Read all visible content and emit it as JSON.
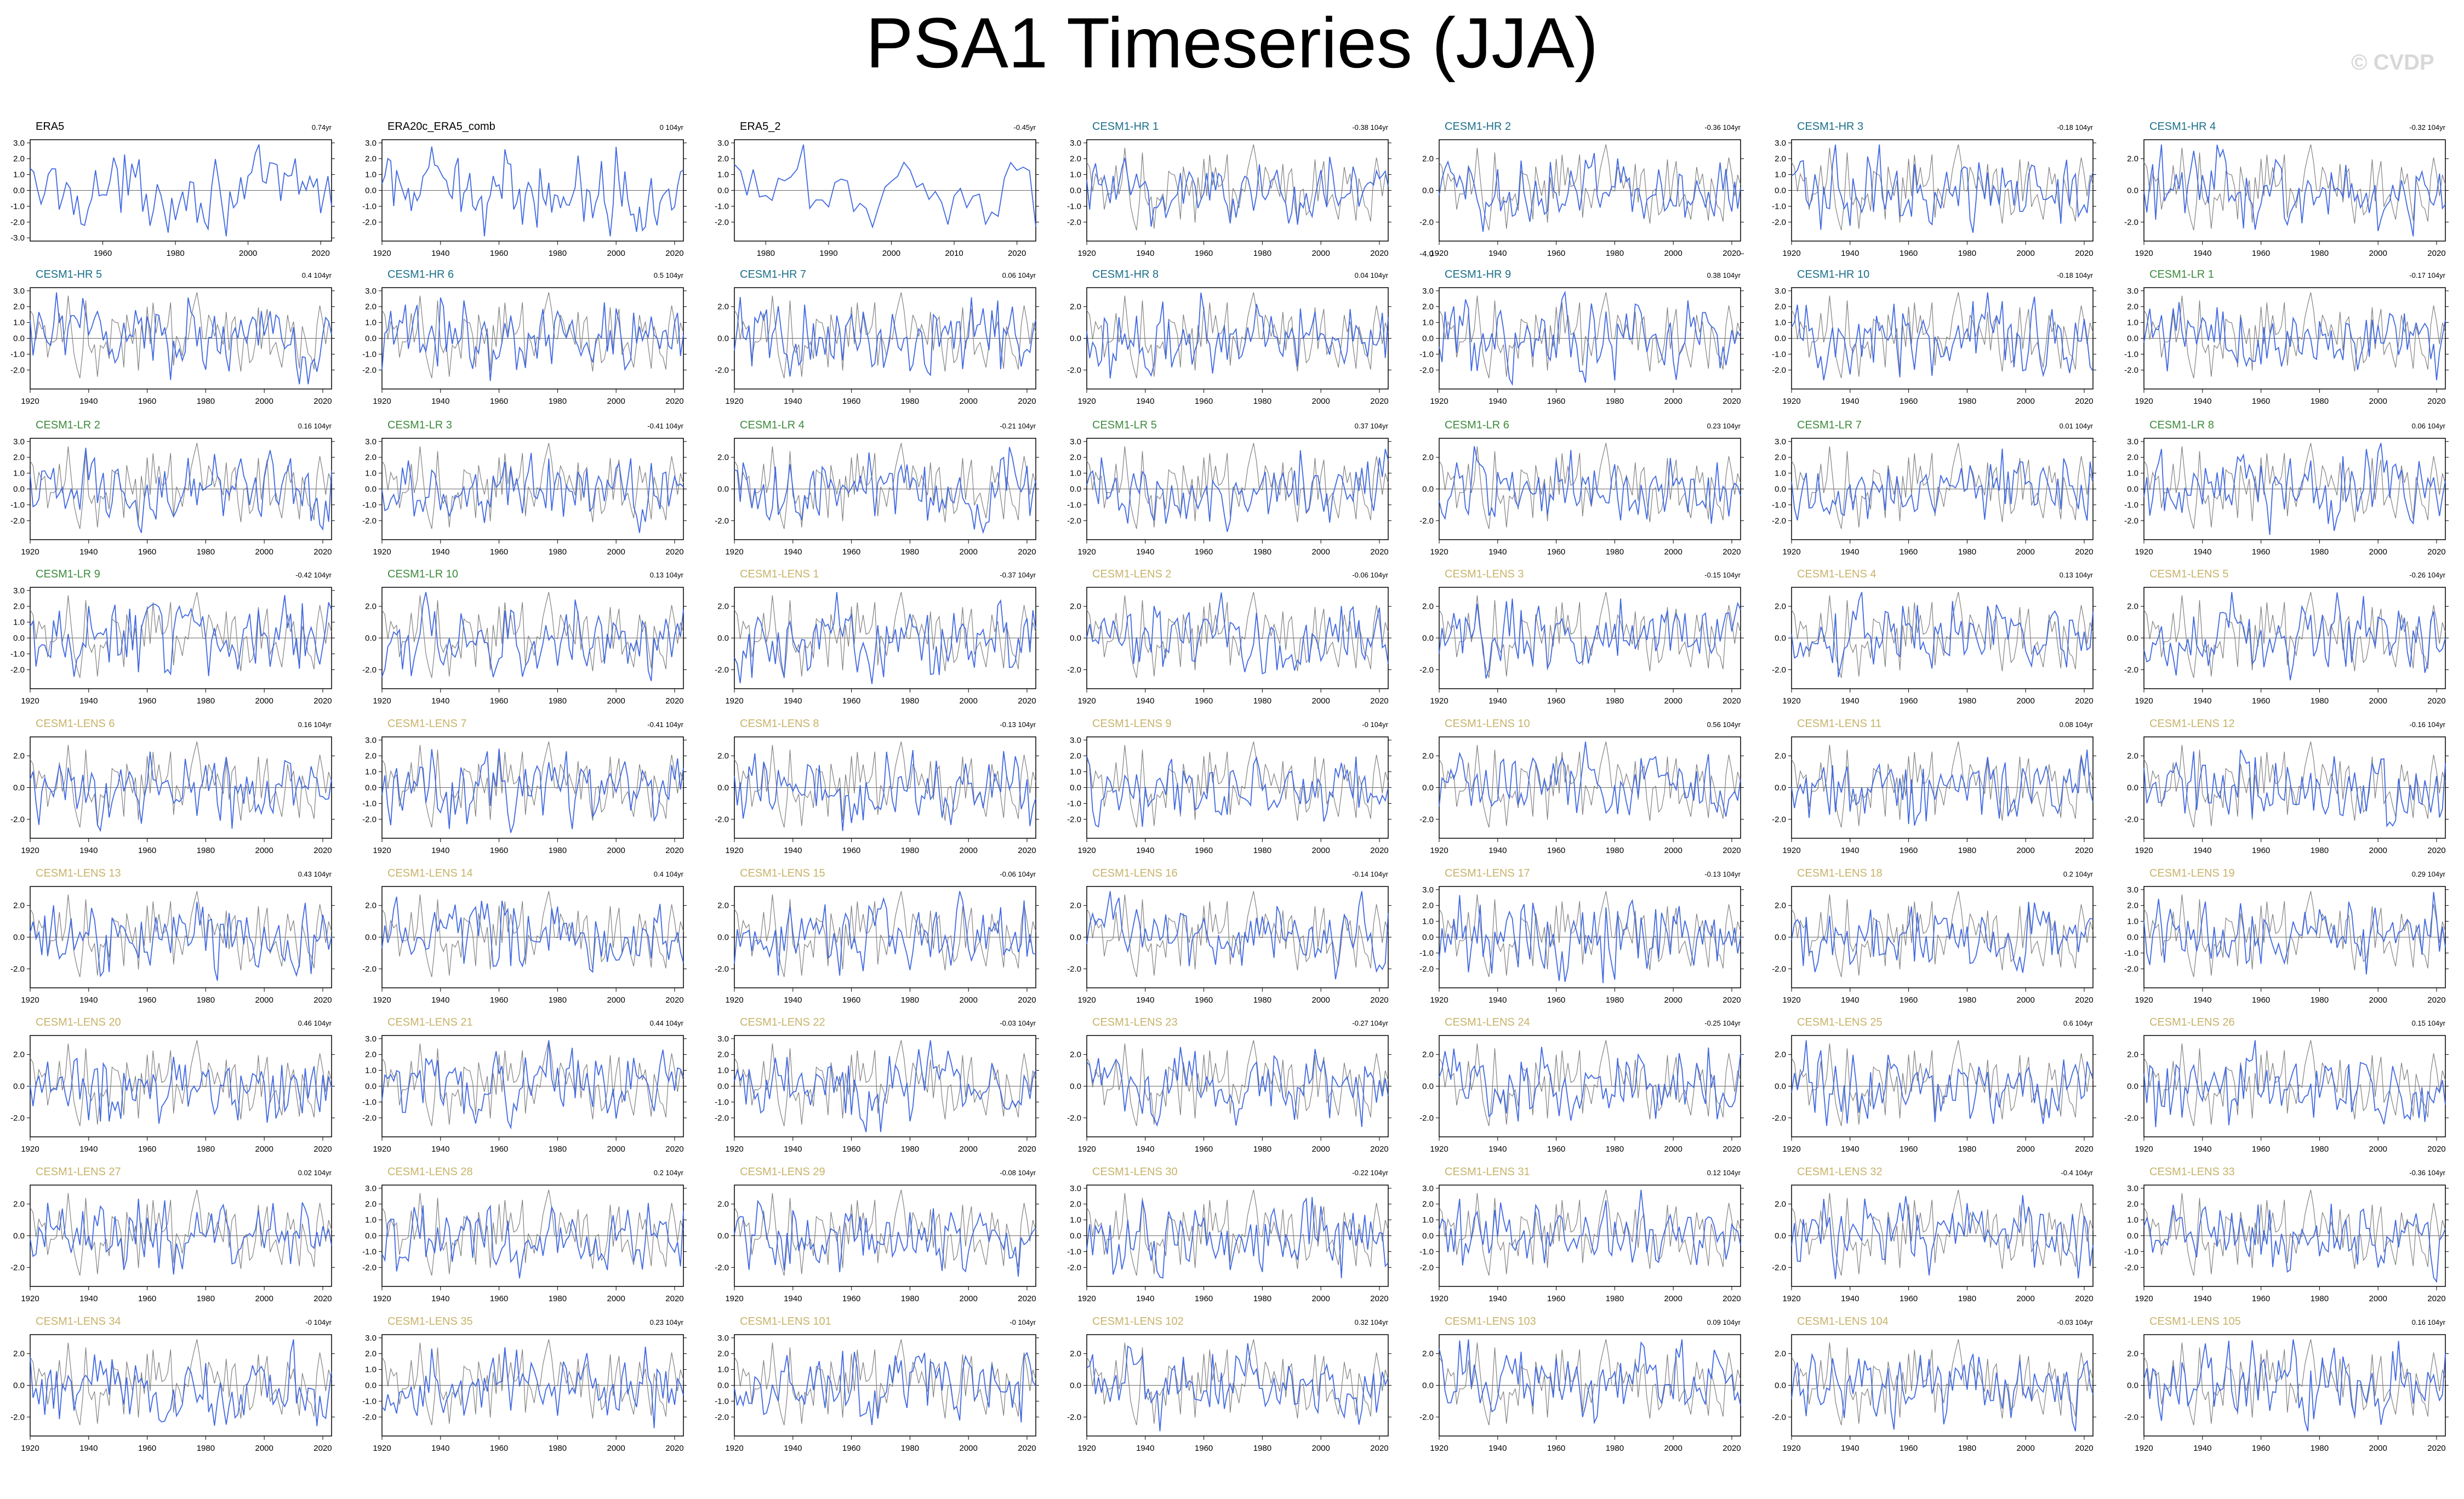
{
  "title": "PSA1 Timeseries (JJA)",
  "watermark": "© CVDP",
  "colors": {
    "member_line": "#4169e1",
    "obs_line": "#808080",
    "obs_label": "#000000",
    "cesm1_hr_label": "#1b6f8a",
    "cesm1_lr_label": "#3d8a3d",
    "cesm1_lens_label": "#c7b36a",
    "axis": "#000000"
  },
  "chart_data": {
    "type": "line",
    "note_units": "x = year, y = standardized PSA1 index",
    "xlim_obs_era5": [
      1940,
      2023
    ],
    "xlim_obs_era5_2": [
      1975,
      2023
    ],
    "xlim_default": [
      1920,
      2023
    ],
    "panels": [
      {
        "label": "ERA5",
        "group": "obs",
        "trend": "0.74yr",
        "x_ticks": [
          "1960",
          "1980",
          "2000",
          "2020"
        ],
        "y_ticks": [
          "3.0",
          "2.0",
          "1.0",
          "0.0",
          "-1.0",
          "-2.0",
          "-3.0"
        ]
      },
      {
        "label": "ERA20c_ERA5_comb",
        "group": "obs",
        "trend": "0 104yr",
        "x_ticks": [
          "1920",
          "1940",
          "1960",
          "1980",
          "2000",
          "2020"
        ],
        "y_ticks": [
          "3.0",
          "2.0",
          "1.0",
          "0.0",
          "-1.0",
          "-2.0"
        ]
      },
      {
        "label": "ERA5_2",
        "group": "obs",
        "trend": "-0.45yr",
        "x_ticks": [
          "1980",
          "1990",
          "2000",
          "2010",
          "2020"
        ],
        "y_ticks": [
          "3.0",
          "2.0",
          "1.0",
          "0.0",
          "-1.0",
          "-2.0"
        ]
      },
      {
        "label": "CESM1-HR 1",
        "group": "hr",
        "trend": "-0.38 104yr",
        "y_ticks": [
          "3.0",
          "2.0",
          "1.0",
          "0.0",
          "-1.0",
          "-2.0"
        ]
      },
      {
        "label": "CESM1-HR 2",
        "group": "hr",
        "trend": "-0.36 104yr",
        "y_ticks": [
          "2.0",
          "0.0",
          "-2.0",
          "-4.0"
        ]
      },
      {
        "label": "CESM1-HR 3",
        "group": "hr",
        "trend": "-0.18 104yr",
        "y_ticks": [
          "3.0",
          "2.0",
          "1.0",
          "0.0",
          "-1.0",
          "-2.0"
        ]
      },
      {
        "label": "CESM1-HR 4",
        "group": "hr",
        "trend": "-0.32 104yr",
        "y_ticks": [
          "2.0",
          "0.0",
          "-2.0"
        ]
      },
      {
        "label": "CESM1-HR 5",
        "group": "hr",
        "trend": "0.4 104yr",
        "y_ticks": [
          "3.0",
          "2.0",
          "1.0",
          "0.0",
          "-1.0",
          "-2.0"
        ]
      },
      {
        "label": "CESM1-HR 6",
        "group": "hr",
        "trend": "0.5 104yr",
        "y_ticks": [
          "3.0",
          "2.0",
          "1.0",
          "0.0",
          "-1.0",
          "-2.0"
        ]
      },
      {
        "label": "CESM1-HR 7",
        "group": "hr",
        "trend": "0.06 104yr",
        "y_ticks": [
          "2.0",
          "0.0",
          "-2.0"
        ]
      },
      {
        "label": "CESM1-HR 8",
        "group": "hr",
        "trend": "0.04 104yr",
        "y_ticks": [
          "2.0",
          "0.0",
          "-2.0"
        ]
      },
      {
        "label": "CESM1-HR 9",
        "group": "hr",
        "trend": "0.38 104yr",
        "y_ticks": [
          "3.0",
          "2.0",
          "1.0",
          "0.0",
          "-1.0",
          "-2.0"
        ]
      },
      {
        "label": "CESM1-HR 10",
        "group": "hr",
        "trend": "-0.18 104yr",
        "y_ticks": [
          "3.0",
          "2.0",
          "1.0",
          "0.0",
          "-1.0",
          "-2.0"
        ]
      },
      {
        "label": "CESM1-LR 1",
        "group": "lr",
        "trend": "-0.17 104yr",
        "y_ticks": [
          "3.0",
          "2.0",
          "1.0",
          "0.0",
          "-1.0",
          "-2.0"
        ]
      },
      {
        "label": "CESM1-LR 2",
        "group": "lr",
        "trend": "0.16 104yr",
        "y_ticks": [
          "3.0",
          "2.0",
          "1.0",
          "0.0",
          "-1.0",
          "-2.0"
        ]
      },
      {
        "label": "CESM1-LR 3",
        "group": "lr",
        "trend": "-0.41 104yr",
        "y_ticks": [
          "3.0",
          "2.0",
          "1.0",
          "0.0",
          "-1.0",
          "-2.0"
        ]
      },
      {
        "label": "CESM1-LR 4",
        "group": "lr",
        "trend": "-0.21 104yr",
        "y_ticks": [
          "2.0",
          "0.0",
          "-2.0"
        ]
      },
      {
        "label": "CESM1-LR 5",
        "group": "lr",
        "trend": "0.37 104yr",
        "y_ticks": [
          "3.0",
          "2.0",
          "1.0",
          "0.0",
          "-1.0",
          "-2.0"
        ]
      },
      {
        "label": "CESM1-LR 6",
        "group": "lr",
        "trend": "0.23 104yr",
        "y_ticks": [
          "2.0",
          "0.0",
          "-2.0"
        ]
      },
      {
        "label": "CESM1-LR 7",
        "group": "lr",
        "trend": "0.01 104yr",
        "y_ticks": [
          "3.0",
          "2.0",
          "1.0",
          "0.0",
          "-1.0",
          "-2.0"
        ]
      },
      {
        "label": "CESM1-LR 8",
        "group": "lr",
        "trend": "0.06 104yr",
        "y_ticks": [
          "3.0",
          "2.0",
          "1.0",
          "0.0",
          "-1.0",
          "-2.0"
        ]
      },
      {
        "label": "CESM1-LR 9",
        "group": "lr",
        "trend": "-0.42 104yr",
        "y_ticks": [
          "3.0",
          "2.0",
          "1.0",
          "0.0",
          "-1.0",
          "-2.0"
        ]
      },
      {
        "label": "CESM1-LR 10",
        "group": "lr",
        "trend": "0.13 104yr",
        "y_ticks": [
          "2.0",
          "0.0",
          "-2.0"
        ]
      },
      {
        "label": "CESM1-LENS 1",
        "group": "lens",
        "trend": "-0.37 104yr",
        "y_ticks": [
          "2.0",
          "0.0",
          "-2.0"
        ]
      },
      {
        "label": "CESM1-LENS 2",
        "group": "lens",
        "trend": "-0.06 104yr",
        "y_ticks": [
          "2.0",
          "0.0",
          "-2.0"
        ]
      },
      {
        "label": "CESM1-LENS 3",
        "group": "lens",
        "trend": "-0.15 104yr",
        "y_ticks": [
          "2.0",
          "0.0",
          "-2.0"
        ]
      },
      {
        "label": "CESM1-LENS 4",
        "group": "lens",
        "trend": "0.13 104yr",
        "y_ticks": [
          "2.0",
          "0.0",
          "-2.0"
        ]
      },
      {
        "label": "CESM1-LENS 5",
        "group": "lens",
        "trend": "-0.26 104yr",
        "y_ticks": [
          "2.0",
          "0.0",
          "-2.0"
        ]
      },
      {
        "label": "CESM1-LENS 6",
        "group": "lens",
        "trend": "0.16 104yr",
        "y_ticks": [
          "2.0",
          "0.0",
          "-2.0"
        ]
      },
      {
        "label": "CESM1-LENS 7",
        "group": "lens",
        "trend": "-0.41 104yr",
        "y_ticks": [
          "3.0",
          "2.0",
          "1.0",
          "0.0",
          "-1.0",
          "-2.0"
        ]
      },
      {
        "label": "CESM1-LENS 8",
        "group": "lens",
        "trend": "-0.13 104yr",
        "y_ticks": [
          "2.0",
          "0.0",
          "-2.0"
        ]
      },
      {
        "label": "CESM1-LENS 9",
        "group": "lens",
        "trend": "-0 104yr",
        "y_ticks": [
          "3.0",
          "2.0",
          "1.0",
          "0.0",
          "-1.0",
          "-2.0"
        ]
      },
      {
        "label": "CESM1-LENS 10",
        "group": "lens",
        "trend": "0.56 104yr",
        "y_ticks": [
          "2.0",
          "0.0",
          "-2.0"
        ]
      },
      {
        "label": "CESM1-LENS 11",
        "group": "lens",
        "trend": "0.08 104yr",
        "y_ticks": [
          "2.0",
          "0.0",
          "-2.0"
        ]
      },
      {
        "label": "CESM1-LENS 12",
        "group": "lens",
        "trend": "-0.16 104yr",
        "y_ticks": [
          "2.0",
          "0.0",
          "-2.0"
        ]
      },
      {
        "label": "CESM1-LENS 13",
        "group": "lens",
        "trend": "0.43 104yr",
        "y_ticks": [
          "2.0",
          "0.0",
          "-2.0"
        ]
      },
      {
        "label": "CESM1-LENS 14",
        "group": "lens",
        "trend": "0.4 104yr",
        "y_ticks": [
          "2.0",
          "0.0",
          "-2.0"
        ]
      },
      {
        "label": "CESM1-LENS 15",
        "group": "lens",
        "trend": "-0.06 104yr",
        "y_ticks": [
          "2.0",
          "0.0",
          "-2.0"
        ]
      },
      {
        "label": "CESM1-LENS 16",
        "group": "lens",
        "trend": "-0.14 104yr",
        "y_ticks": [
          "2.0",
          "0.0",
          "-2.0"
        ]
      },
      {
        "label": "CESM1-LENS 17",
        "group": "lens",
        "trend": "-0.13 104yr",
        "y_ticks": [
          "3.0",
          "2.0",
          "1.0",
          "0.0",
          "-1.0",
          "-2.0"
        ]
      },
      {
        "label": "CESM1-LENS 18",
        "group": "lens",
        "trend": "0.2 104yr",
        "y_ticks": [
          "2.0",
          "0.0",
          "-2.0"
        ]
      },
      {
        "label": "CESM1-LENS 19",
        "group": "lens",
        "trend": "0.29 104yr",
        "y_ticks": [
          "3.0",
          "2.0",
          "1.0",
          "0.0",
          "-1.0",
          "-2.0"
        ]
      },
      {
        "label": "CESM1-LENS 20",
        "group": "lens",
        "trend": "0.46 104yr",
        "y_ticks": [
          "2.0",
          "0.0",
          "-2.0"
        ]
      },
      {
        "label": "CESM1-LENS 21",
        "group": "lens",
        "trend": "0.44 104yr",
        "y_ticks": [
          "3.0",
          "2.0",
          "1.0",
          "0.0",
          "-1.0",
          "-2.0"
        ]
      },
      {
        "label": "CESM1-LENS 22",
        "group": "lens",
        "trend": "-0.03 104yr",
        "y_ticks": [
          "3.0",
          "2.0",
          "1.0",
          "0.0",
          "-1.0",
          "-2.0"
        ]
      },
      {
        "label": "CESM1-LENS 23",
        "group": "lens",
        "trend": "-0.27 104yr",
        "y_ticks": [
          "2.0",
          "0.0",
          "-2.0"
        ]
      },
      {
        "label": "CESM1-LENS 24",
        "group": "lens",
        "trend": "-0.25 104yr",
        "y_ticks": [
          "2.0",
          "0.0",
          "-2.0"
        ]
      },
      {
        "label": "CESM1-LENS 25",
        "group": "lens",
        "trend": "0.6 104yr",
        "y_ticks": [
          "2.0",
          "0.0",
          "-2.0"
        ]
      },
      {
        "label": "CESM1-LENS 26",
        "group": "lens",
        "trend": "0.15 104yr",
        "y_ticks": [
          "2.0",
          "0.0",
          "-2.0"
        ]
      },
      {
        "label": "CESM1-LENS 27",
        "group": "lens",
        "trend": "0.02 104yr",
        "y_ticks": [
          "2.0",
          "0.0",
          "-2.0"
        ]
      },
      {
        "label": "CESM1-LENS 28",
        "group": "lens",
        "trend": "0.2 104yr",
        "y_ticks": [
          "3.0",
          "2.0",
          "1.0",
          "0.0",
          "-1.0",
          "-2.0"
        ]
      },
      {
        "label": "CESM1-LENS 29",
        "group": "lens",
        "trend": "-0.08 104yr",
        "y_ticks": [
          "2.0",
          "0.0",
          "-2.0"
        ]
      },
      {
        "label": "CESM1-LENS 30",
        "group": "lens",
        "trend": "-0.22 104yr",
        "y_ticks": [
          "3.0",
          "2.0",
          "1.0",
          "0.0",
          "-1.0",
          "-2.0"
        ]
      },
      {
        "label": "CESM1-LENS 31",
        "group": "lens",
        "trend": "0.12 104yr",
        "y_ticks": [
          "3.0",
          "2.0",
          "1.0",
          "0.0",
          "-1.0",
          "-2.0"
        ]
      },
      {
        "label": "CESM1-LENS 32",
        "group": "lens",
        "trend": "-0.4 104yr",
        "y_ticks": [
          "2.0",
          "0.0",
          "-2.0"
        ]
      },
      {
        "label": "CESM1-LENS 33",
        "group": "lens",
        "trend": "-0.36 104yr",
        "y_ticks": [
          "3.0",
          "2.0",
          "1.0",
          "0.0",
          "-1.0",
          "-2.0"
        ]
      },
      {
        "label": "CESM1-LENS 34",
        "group": "lens",
        "trend": "-0 104yr",
        "y_ticks": [
          "2.0",
          "0.0",
          "-2.0"
        ]
      },
      {
        "label": "CESM1-LENS 35",
        "group": "lens",
        "trend": "0.23 104yr",
        "y_ticks": [
          "3.0",
          "2.0",
          "1.0",
          "0.0",
          "-1.0",
          "-2.0"
        ]
      },
      {
        "label": "CESM1-LENS 101",
        "group": "lens",
        "trend": "-0 104yr",
        "y_ticks": [
          "3.0",
          "2.0",
          "1.0",
          "0.0",
          "-1.0",
          "-2.0"
        ]
      },
      {
        "label": "CESM1-LENS 102",
        "group": "lens",
        "trend": "0.32 104yr",
        "y_ticks": [
          "2.0",
          "0.0",
          "-2.0"
        ]
      },
      {
        "label": "CESM1-LENS 103",
        "group": "lens",
        "trend": "0.09 104yr",
        "y_ticks": [
          "2.0",
          "0.0",
          "-2.0"
        ]
      },
      {
        "label": "CESM1-LENS 104",
        "group": "lens",
        "trend": "-0.03 104yr",
        "y_ticks": [
          "2.0",
          "0.0",
          "-2.0"
        ]
      },
      {
        "label": "CESM1-LENS 105",
        "group": "lens",
        "trend": "0.16 104yr",
        "y_ticks": [
          "2.0",
          "0.0",
          "-2.0"
        ]
      }
    ],
    "default_x_ticks": [
      "1920",
      "1940",
      "1960",
      "1980",
      "2000",
      "2020"
    ]
  }
}
